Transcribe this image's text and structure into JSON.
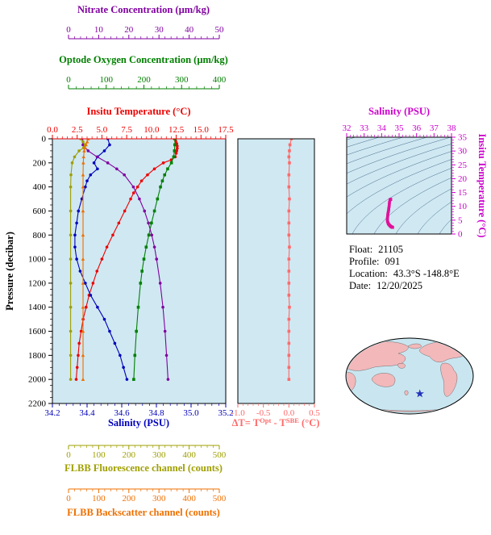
{
  "info": {
    "float_label": "Float:",
    "float_value": "21105",
    "profile_label": "Profile:",
    "profile_value": "091",
    "location_label": "Location:",
    "location_value": "43.3°S  -148.8°E",
    "date_label": "Date:",
    "date_value": "12/20/2025"
  },
  "colors": {
    "nitrate": "#8000a0",
    "oxygen": "#008000",
    "temperature": "#ee0000",
    "salinity": "#0000bb",
    "pressure": "#000000",
    "delta_t": "#ff6a6a",
    "ts": "#cc00cc",
    "ts_curve": "#e0119a",
    "fluorescence": "#9f9f00",
    "backscatter": "#ef7000",
    "panel_bg": "#cfe8f2",
    "map_ocean": "#c9e6f0",
    "map_land": "#f2b8ba",
    "star": "#2233bb"
  },
  "axes": {
    "nitrate": {
      "title": "Nitrate Concentration (µm/kg)",
      "ticks": [
        "0",
        "10",
        "20",
        "30",
        "40",
        "50"
      ]
    },
    "oxygen": {
      "title": "Optode Oxygen Concentration (µm/kg)",
      "ticks": [
        "0",
        "100",
        "200",
        "300",
        "400"
      ]
    },
    "temperature": {
      "title": "Insitu Temperature (°C)",
      "ticks": [
        "0.0",
        "2.5",
        "5.0",
        "7.5",
        "10.0",
        "12.5",
        "15.0",
        "17.5"
      ]
    },
    "pressure": {
      "title": "Pressure (decibar)",
      "ticks": [
        "0",
        "200",
        "400",
        "600",
        "800",
        "1000",
        "1200",
        "1400",
        "1600",
        "1800",
        "2000",
        "2200"
      ]
    },
    "salinity": {
      "title": "Salinity (PSU)",
      "ticks": [
        "34.2",
        "34.4",
        "34.6",
        "34.8",
        "35.0",
        "35.2"
      ]
    },
    "delta_t": {
      "title_parts": [
        "ΔT= T",
        "Opt",
        " - T",
        "SBE",
        " (°C)"
      ],
      "ticks": [
        "-1.0",
        "-0.5",
        "0.0",
        "0.5"
      ]
    },
    "ts_salinity": {
      "title": "Salinity (PSU)",
      "ticks": [
        "32",
        "33",
        "34",
        "35",
        "36",
        "37",
        "38"
      ]
    },
    "ts_temperature": {
      "title": "Insitu Temperature (°C)",
      "ticks": [
        "0",
        "5",
        "10",
        "15",
        "20",
        "25",
        "30",
        "35"
      ]
    },
    "fluorescence": {
      "title": "FLBB Fluorescence channel (counts)",
      "ticks": [
        "0",
        "100",
        "200",
        "300",
        "400",
        "500"
      ]
    },
    "backscatter": {
      "title": "FLBB Backscatter channel (counts)",
      "ticks": [
        "0",
        "100",
        "200",
        "300",
        "400",
        "500"
      ]
    }
  },
  "map": {
    "star_lat": -43.3,
    "star_lon": -148.8
  },
  "chart_data": [
    {
      "id": "profile-plot",
      "type": "line",
      "ylabel": "Pressure (decibar)",
      "ylim": [
        0,
        2200
      ],
      "yticks": [
        0,
        200,
        400,
        600,
        800,
        1000,
        1200,
        1400,
        1600,
        1800,
        2000,
        2200
      ],
      "series": [
        {
          "name": "insitu-temperature",
          "label": "Insitu Temperature (°C)",
          "color": "#ee0000",
          "marker": "circle",
          "xlim": [
            0,
            17.5
          ],
          "pressure": [
            0,
            20,
            40,
            60,
            80,
            100,
            120,
            150,
            175,
            200,
            250,
            300,
            350,
            400,
            450,
            500,
            600,
            700,
            800,
            900,
            1000,
            1100,
            1200,
            1300,
            1400,
            1500,
            1600,
            1700,
            1800,
            1900,
            2000
          ],
          "values": [
            12.3,
            12.45,
            12.55,
            12.6,
            12.6,
            12.55,
            12.5,
            12.4,
            12.0,
            11.2,
            10.3,
            9.6,
            9.0,
            8.6,
            8.2,
            7.9,
            7.3,
            6.7,
            6.1,
            5.5,
            5.0,
            4.5,
            4.1,
            3.7,
            3.4,
            3.1,
            2.9,
            2.7,
            2.6,
            2.5,
            2.4
          ]
        },
        {
          "name": "salinity",
          "label": "Salinity (PSU)",
          "color": "#0000bb",
          "marker": "circle",
          "xlim": [
            34.2,
            35.2
          ],
          "pressure": [
            0,
            50,
            100,
            150,
            200,
            250,
            300,
            350,
            400,
            500,
            600,
            700,
            800,
            900,
            1000,
            1100,
            1200,
            1300,
            1400,
            1500,
            1600,
            1700,
            1800,
            1900,
            2000
          ],
          "values": [
            34.52,
            34.53,
            34.5,
            34.46,
            34.44,
            34.46,
            34.42,
            34.4,
            34.39,
            34.37,
            34.35,
            34.34,
            34.33,
            34.33,
            34.34,
            34.36,
            34.39,
            34.42,
            34.46,
            34.5,
            34.53,
            34.56,
            34.59,
            34.61,
            34.63
          ]
        },
        {
          "name": "oxygen",
          "label": "Optode Oxygen Concentration (µm/kg)",
          "color": "#008000",
          "marker": "square",
          "xlim": [
            0,
            400
          ],
          "pressure": [
            0,
            50,
            100,
            150,
            200,
            250,
            300,
            350,
            400,
            500,
            600,
            700,
            800,
            900,
            1000,
            1100,
            1200,
            1400,
            1600,
            1800,
            2000
          ],
          "values": [
            283,
            282,
            281,
            279,
            273,
            263,
            255,
            249,
            244,
            236,
            228,
            220,
            213,
            206,
            200,
            195,
            191,
            185,
            180,
            176,
            173
          ]
        },
        {
          "name": "nitrate",
          "label": "Nitrate Concentration (µm/kg)",
          "color": "#8000a0",
          "marker": "circle",
          "xlim": [
            0,
            50
          ],
          "pressure": [
            0,
            50,
            100,
            150,
            200,
            250,
            300,
            400,
            500,
            600,
            700,
            800,
            900,
            1000,
            1200,
            1400,
            1600,
            1800,
            2000
          ],
          "values": [
            4.5,
            4.8,
            6.5,
            9.5,
            13.0,
            16.0,
            18.5,
            21.5,
            23.5,
            25.2,
            26.5,
            27.6,
            28.5,
            29.2,
            30.4,
            31.3,
            32.0,
            32.5,
            33.0
          ]
        },
        {
          "name": "fluorescence",
          "label": "FLBB Fluorescence channel (counts)",
          "color": "#9f9f00",
          "marker": "circle",
          "xlim": [
            0,
            500
          ],
          "pressure": [
            0,
            25,
            50,
            75,
            100,
            150,
            200,
            300,
            400,
            600,
            800,
            1000,
            1200,
            1400,
            1600,
            1800,
            2000
          ],
          "values": [
            40,
            48,
            55,
            50,
            35,
            20,
            12,
            8,
            7,
            7,
            7,
            7,
            7,
            7,
            7,
            7,
            7
          ]
        },
        {
          "name": "backscatter",
          "label": "FLBB Backscatter channel (counts)",
          "color": "#ef7000",
          "marker": "triangle",
          "xlim": [
            0,
            500
          ],
          "pressure": [
            0,
            25,
            50,
            75,
            100,
            150,
            200,
            300,
            400,
            600,
            800,
            1000,
            1200,
            1400,
            1600,
            1800,
            2000
          ],
          "values": [
            65,
            62,
            58,
            55,
            52,
            50,
            49,
            48,
            48,
            48,
            48,
            48,
            48,
            48,
            48,
            48,
            48
          ]
        }
      ]
    },
    {
      "id": "delta-t-plot",
      "type": "line",
      "xlabel": "ΔT= TOpt - TSBE (°C)",
      "xlim": [
        -1.0,
        0.5
      ],
      "ylim": [
        0,
        2200
      ],
      "color": "#ff6a6a",
      "marker": "square",
      "pressure": [
        0,
        50,
        100,
        150,
        200,
        300,
        400,
        500,
        600,
        700,
        800,
        900,
        1000,
        1100,
        1200,
        1300,
        1400,
        1500,
        1600,
        1700,
        1800,
        1900,
        2000
      ],
      "values": [
        0.05,
        0.02,
        0.01,
        0.0,
        0.01,
        0.0,
        0.0,
        0.01,
        0.0,
        0.0,
        0.0,
        0.01,
        0.0,
        0.0,
        0.0,
        0.0,
        0.01,
        0.0,
        0.0,
        0.0,
        0.0,
        0.0,
        0.0
      ]
    },
    {
      "id": "ts-diagram",
      "type": "line",
      "xlabel": "Salinity (PSU)",
      "xlim": [
        32,
        38
      ],
      "ylabel": "Insitu Temperature (°C)",
      "ylim": [
        0,
        35
      ],
      "color": "#e0119a",
      "marker": "square",
      "contours": "sigma-theta isopycnals",
      "salinity": [
        34.52,
        34.51,
        34.48,
        34.45,
        34.44,
        34.43,
        34.41,
        34.4,
        34.38,
        34.36,
        34.35,
        34.34,
        34.33,
        34.33,
        34.34,
        34.36,
        34.39,
        34.42,
        34.46,
        34.5,
        34.53,
        34.56,
        34.59,
        34.61,
        34.63
      ],
      "temperature": [
        12.55,
        12.5,
        12.3,
        11.5,
        10.8,
        10.0,
        9.3,
        8.6,
        8.0,
        7.3,
        6.7,
        6.1,
        5.5,
        5.0,
        4.6,
        4.1,
        3.7,
        3.4,
        3.1,
        2.9,
        2.7,
        2.6,
        2.5,
        2.45,
        2.4
      ]
    }
  ]
}
